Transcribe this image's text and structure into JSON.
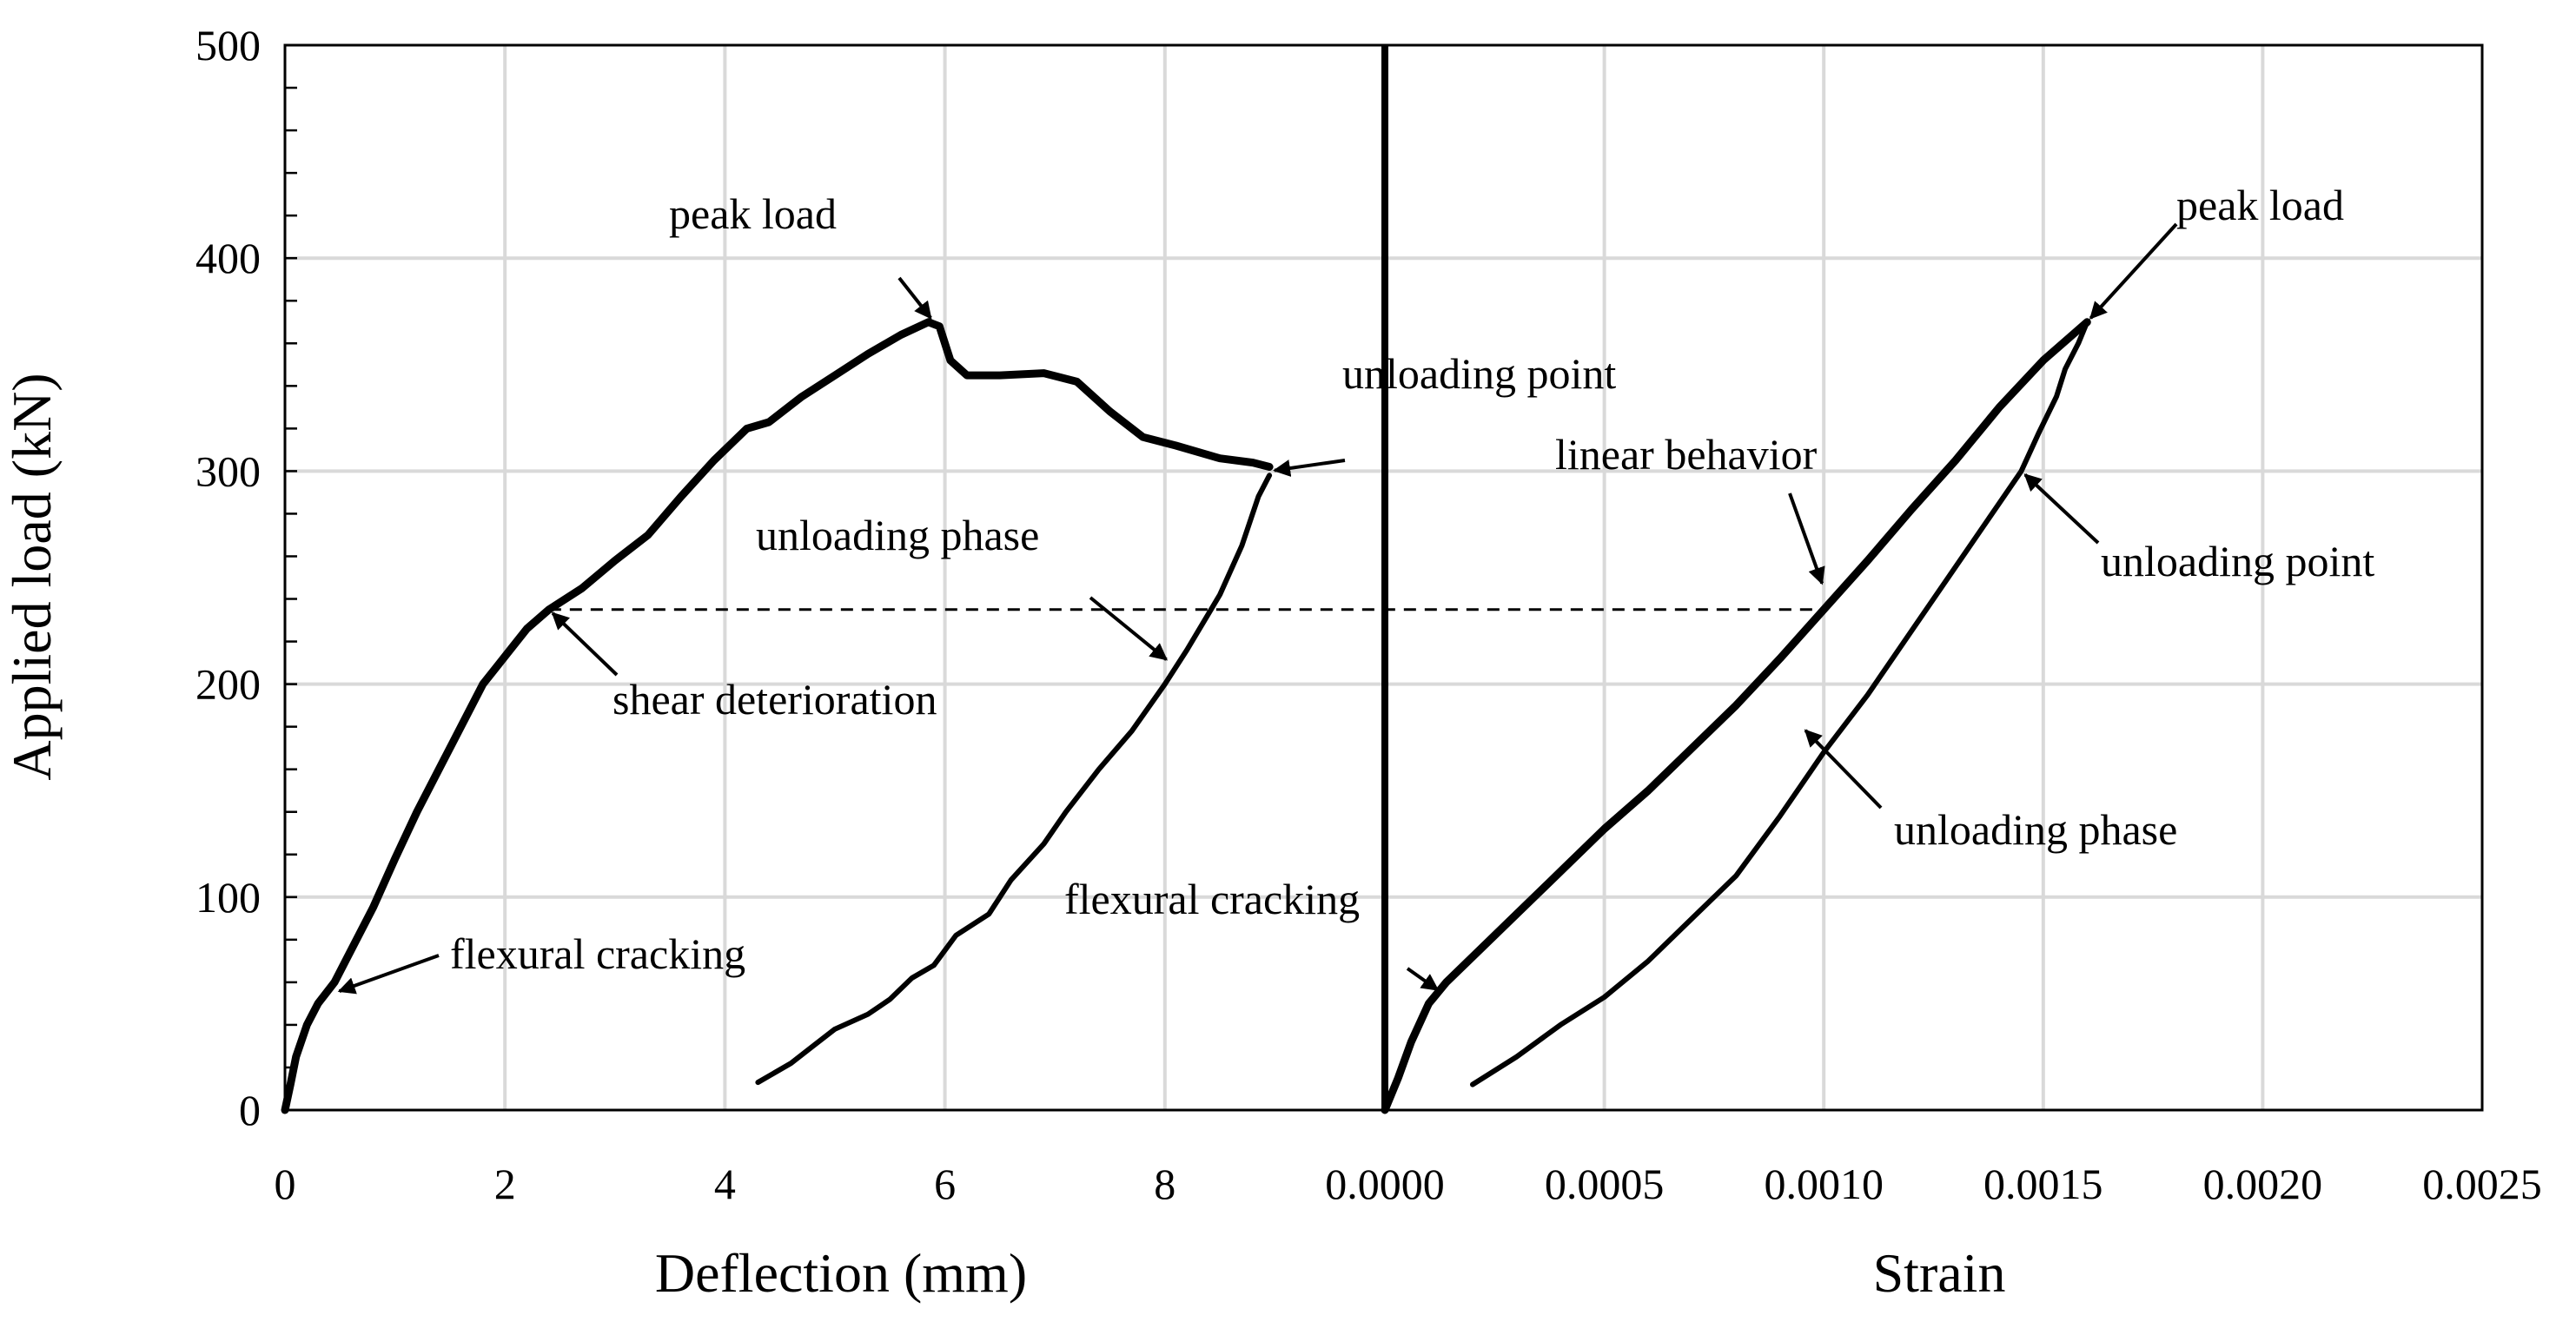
{
  "chart_data": {
    "type": "line",
    "ylabel": "Applied  load (kN)",
    "ylim": [
      0,
      500
    ],
    "yticks": [
      0,
      100,
      200,
      300,
      400,
      500
    ],
    "grid": true,
    "legend": "none",
    "reference_line": {
      "y": 235,
      "from_deflection": 2.4,
      "to_strain": 0.00099,
      "style": "dashed"
    },
    "panels": [
      {
        "name": "deflection",
        "xlabel": "Deflection (mm)",
        "xlim": [
          0,
          10
        ],
        "xticks": [
          0,
          2,
          4,
          6,
          8
        ],
        "series": [
          {
            "name": "loading",
            "points": [
              [
                0,
                0
              ],
              [
                0.05,
                12
              ],
              [
                0.1,
                25
              ],
              [
                0.2,
                40
              ],
              [
                0.3,
                50
              ],
              [
                0.45,
                60
              ],
              [
                0.6,
                75
              ],
              [
                0.8,
                95
              ],
              [
                1.0,
                118
              ],
              [
                1.2,
                140
              ],
              [
                1.4,
                160
              ],
              [
                1.6,
                180
              ],
              [
                1.8,
                200
              ],
              [
                2.0,
                213
              ],
              [
                2.2,
                226
              ],
              [
                2.4,
                235
              ],
              [
                2.7,
                245
              ],
              [
                3.0,
                258
              ],
              [
                3.3,
                270
              ],
              [
                3.6,
                288
              ],
              [
                3.9,
                305
              ],
              [
                4.2,
                320
              ],
              [
                4.4,
                323
              ],
              [
                4.7,
                335
              ],
              [
                5.0,
                345
              ],
              [
                5.3,
                355
              ],
              [
                5.6,
                364
              ],
              [
                5.85,
                370
              ],
              [
                5.95,
                368
              ],
              [
                6.05,
                352
              ],
              [
                6.2,
                345
              ],
              [
                6.5,
                345
              ],
              [
                6.9,
                346
              ],
              [
                7.2,
                342
              ],
              [
                7.5,
                328
              ],
              [
                7.8,
                316
              ],
              [
                8.1,
                312
              ],
              [
                8.5,
                306
              ],
              [
                8.8,
                304
              ],
              [
                8.95,
                302
              ]
            ]
          },
          {
            "name": "unloading",
            "points": [
              [
                8.95,
                298
              ],
              [
                8.85,
                288
              ],
              [
                8.7,
                265
              ],
              [
                8.5,
                242
              ],
              [
                8.2,
                216
              ],
              [
                8.0,
                200
              ],
              [
                7.7,
                178
              ],
              [
                7.4,
                160
              ],
              [
                7.1,
                140
              ],
              [
                6.9,
                125
              ],
              [
                6.6,
                108
              ],
              [
                6.4,
                92
              ],
              [
                6.1,
                82
              ],
              [
                5.9,
                68
              ],
              [
                5.7,
                62
              ],
              [
                5.5,
                52
              ],
              [
                5.3,
                45
              ],
              [
                5.0,
                38
              ],
              [
                4.8,
                30
              ],
              [
                4.6,
                22
              ],
              [
                4.3,
                13
              ]
            ]
          }
        ]
      },
      {
        "name": "strain",
        "xlabel": "Strain",
        "xlim": [
          0,
          0.0025
        ],
        "xticks": [
          "0.0000",
          "0.0005",
          "0.0010",
          "0.0015",
          "0.0020",
          "0.0025"
        ],
        "series": [
          {
            "name": "loading",
            "points": [
              [
                0,
                0
              ],
              [
                3e-05,
                15
              ],
              [
                6e-05,
                32
              ],
              [
                0.0001,
                50
              ],
              [
                0.00014,
                60
              ],
              [
                0.0002,
                72
              ],
              [
                0.0003,
                92
              ],
              [
                0.0004,
                112
              ],
              [
                0.0005,
                132
              ],
              [
                0.0006,
                150
              ],
              [
                0.0007,
                170
              ],
              [
                0.0008,
                190
              ],
              [
                0.0009,
                212
              ],
              [
                0.001,
                235
              ],
              [
                0.0011,
                258
              ],
              [
                0.0012,
                282
              ],
              [
                0.0013,
                305
              ],
              [
                0.0014,
                330
              ],
              [
                0.0015,
                352
              ],
              [
                0.0016,
                370
              ]
            ]
          },
          {
            "name": "unloading",
            "points": [
              [
                0.0016,
                370
              ],
              [
                0.00158,
                360
              ],
              [
                0.00155,
                348
              ],
              [
                0.00153,
                335
              ],
              [
                0.00149,
                318
              ],
              [
                0.00145,
                300
              ],
              [
                0.0014,
                285
              ],
              [
                0.0013,
                255
              ],
              [
                0.0012,
                225
              ],
              [
                0.0011,
                195
              ],
              [
                0.001,
                168
              ],
              [
                0.0009,
                138
              ],
              [
                0.0008,
                110
              ],
              [
                0.0007,
                90
              ],
              [
                0.0006,
                70
              ],
              [
                0.0005,
                53
              ],
              [
                0.0004,
                40
              ],
              [
                0.0003,
                25
              ],
              [
                0.0002,
                12
              ]
            ]
          }
        ]
      }
    ],
    "annotations": [
      {
        "text": "peak load",
        "panel": "deflection",
        "at": [
          5.9,
          370
        ]
      },
      {
        "text": "unloading point",
        "panel": "deflection",
        "at": [
          8.95,
          300
        ]
      },
      {
        "text": "unloading phase",
        "panel": "deflection",
        "at": [
          8.05,
          210
        ]
      },
      {
        "text": "shear deterioration",
        "panel": "deflection",
        "at": [
          2.4,
          235
        ]
      },
      {
        "text": "flexural  cracking",
        "panel": "deflection",
        "at": [
          0.45,
          55
        ]
      },
      {
        "text": "flexural  cracking",
        "panel": "strain",
        "at": [
          0.00013,
          55
        ]
      },
      {
        "text": "peak load",
        "panel": "strain",
        "at": [
          0.0016,
          370
        ]
      },
      {
        "text": "linear  behavior",
        "panel": "strain",
        "at": [
          0.001,
          245
        ]
      },
      {
        "text": "unloading point",
        "panel": "strain",
        "at": [
          0.00145,
          300
        ]
      },
      {
        "text": "unloading phase",
        "panel": "strain",
        "at": [
          0.00095,
          180
        ]
      }
    ]
  }
}
